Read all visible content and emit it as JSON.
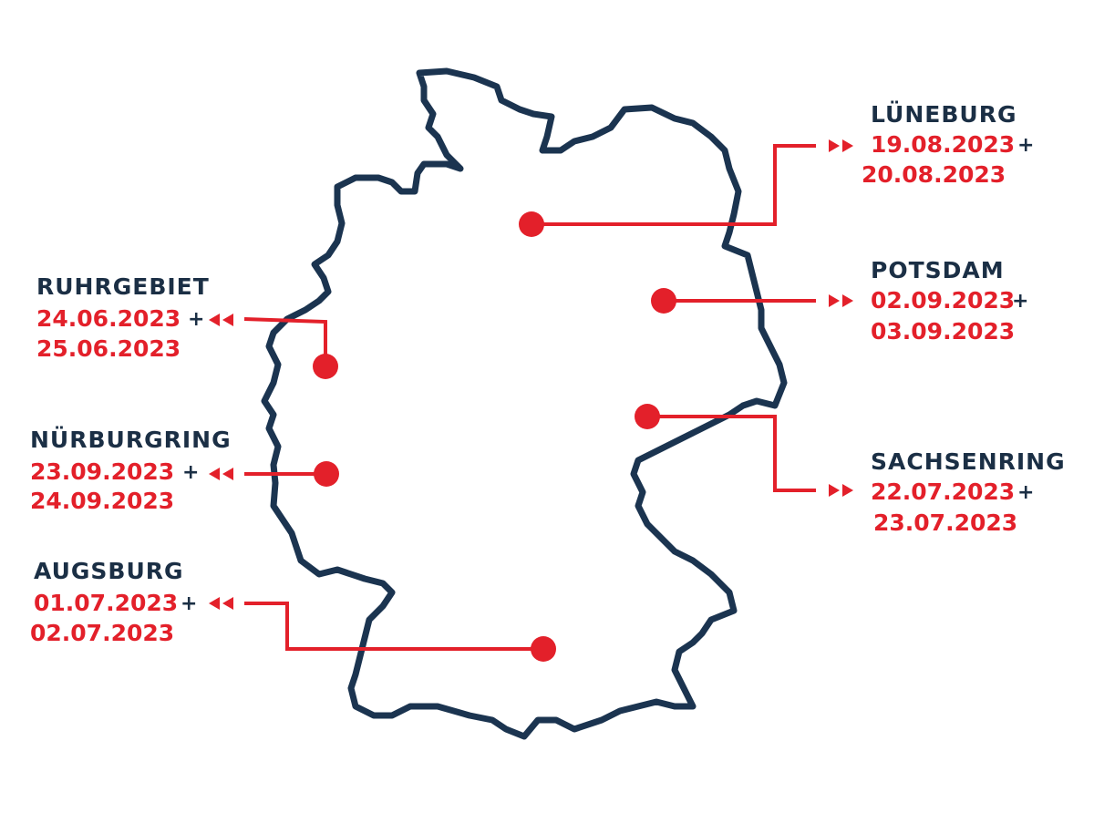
{
  "locations": [
    {
      "name": "LÜNEBURG",
      "date_1": "19.08.2023",
      "separator": "+",
      "date_2": "20.08.2023"
    },
    {
      "name": "POTSDAM",
      "date_1": "02.09.2023",
      "separator": "+",
      "date_2": "03.09.2023"
    },
    {
      "name": "SACHSENRING",
      "date_1": "22.07.2023",
      "separator": "+",
      "date_2": "23.07.2023"
    },
    {
      "name": "RUHRGEBIET",
      "date_1": "24.06.2023",
      "separator": "+",
      "date_2": "25.06.2023"
    },
    {
      "name": "NÜRBURGRING",
      "date_1": "23.09.2023",
      "separator": "+",
      "date_2": "24.09.2023"
    },
    {
      "name": "AUGSBURG",
      "date_1": "01.07.2023",
      "separator": "+",
      "date_2": "02.07.2023"
    }
  ]
}
